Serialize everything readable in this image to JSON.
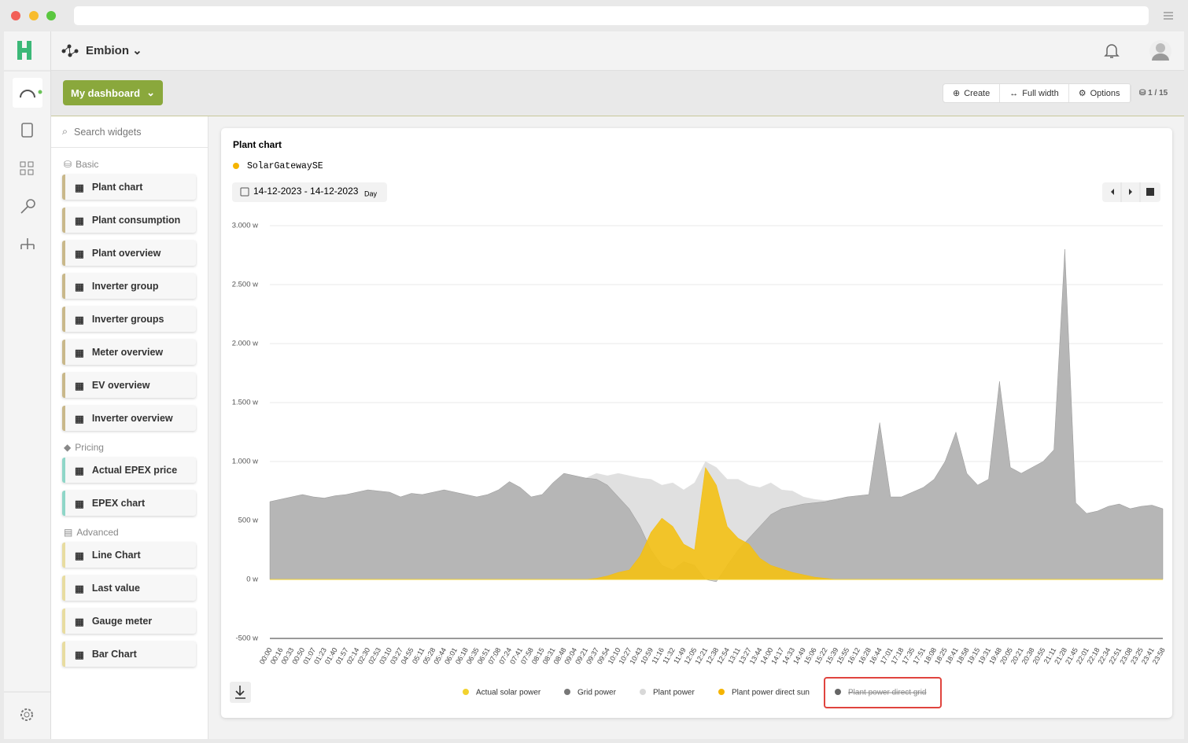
{
  "header": {
    "workspace": "Embion"
  },
  "toolbar": {
    "dashboard": "My dashboard",
    "buttons": [
      "Create",
      "Full width",
      "Options"
    ],
    "page_count": "1 / 15"
  },
  "sidebar": {
    "search_placeholder": "Search widgets",
    "groups": [
      {
        "name": "Basic",
        "items": [
          "Plant chart",
          "Plant consumption",
          "Plant overview",
          "Inverter group",
          "Inverter groups",
          "Meter overview",
          "EV overview",
          "Inverter overview"
        ]
      },
      {
        "name": "Pricing",
        "items": [
          "Actual EPEX price",
          "EPEX chart"
        ]
      },
      {
        "name": "Advanced",
        "items": [
          "Line Chart",
          "Last value",
          "Gauge meter",
          "Bar Chart"
        ]
      }
    ]
  },
  "chart_data": {
    "type": "area",
    "title": "Plant chart",
    "source": "SolarGatewaySE",
    "date_range": "14-12-2023 - 14-12-2023",
    "period": "Day",
    "ylim": [
      -500,
      3000
    ],
    "yticks": [
      {
        "value": -500,
        "label": "-500 w"
      },
      {
        "value": 0,
        "label": "0 w"
      },
      {
        "value": 500,
        "label": "500 w"
      },
      {
        "value": 1000,
        "label": "1.000 w"
      },
      {
        "value": 1500,
        "label": "1.500 w"
      },
      {
        "value": 2000,
        "label": "2.000 w"
      },
      {
        "value": 2500,
        "label": "2.500 w"
      },
      {
        "value": 3000,
        "label": "3.000 w"
      }
    ],
    "categories": [
      "00:00",
      "00:16",
      "00:33",
      "00:50",
      "01:07",
      "01:23",
      "01:40",
      "01:57",
      "02:14",
      "02:30",
      "02:53",
      "03:10",
      "03:27",
      "04:55",
      "05:11",
      "05:28",
      "05:44",
      "06:01",
      "06:18",
      "06:35",
      "06:51",
      "07:08",
      "07:24",
      "07:41",
      "07:58",
      "08:15",
      "08:31",
      "08:48",
      "09:04",
      "09:21",
      "09:37",
      "09:54",
      "10:10",
      "10:27",
      "10:43",
      "10:59",
      "11:16",
      "11:32",
      "11:49",
      "12:05",
      "12:21",
      "12:38",
      "12:54",
      "13:11",
      "13:27",
      "13:44",
      "14:00",
      "14:17",
      "14:33",
      "14:49",
      "15:06",
      "15:22",
      "15:39",
      "15:55",
      "16:12",
      "16:28",
      "16:44",
      "17:01",
      "17:18",
      "17:35",
      "17:51",
      "18:08",
      "18:25",
      "18:41",
      "18:58",
      "19:15",
      "19:31",
      "19:48",
      "20:05",
      "20:21",
      "20:38",
      "20:55",
      "21:11",
      "21:28",
      "21:45",
      "22:01",
      "22:18",
      "22:34",
      "22:51",
      "23:08",
      "23:25",
      "23:41",
      "23:58"
    ],
    "series": [
      {
        "name": "Plant power",
        "color": "#e0e0e0",
        "values": [
          660,
          680,
          700,
          720,
          700,
          690,
          710,
          720,
          740,
          760,
          750,
          740,
          700,
          730,
          720,
          740,
          760,
          740,
          720,
          700,
          720,
          760,
          830,
          780,
          700,
          720,
          820,
          900,
          880,
          860,
          900,
          880,
          900,
          880,
          860,
          850,
          800,
          820,
          760,
          820,
          1000,
          950,
          850,
          850,
          800,
          780,
          820,
          760,
          750,
          700,
          680,
          670,
          680,
          700,
          710,
          720,
          1330,
          700,
          700,
          740,
          780,
          850,
          1000,
          1250,
          900,
          800,
          850,
          1680,
          950,
          900,
          950,
          1000,
          1100,
          2800,
          650,
          560,
          580,
          620,
          640,
          600,
          620,
          630,
          600
        ]
      },
      {
        "name": "Grid power",
        "color": "#777777",
        "values": [
          660,
          680,
          700,
          720,
          700,
          690,
          710,
          720,
          740,
          760,
          750,
          740,
          700,
          730,
          720,
          740,
          760,
          740,
          720,
          700,
          720,
          760,
          830,
          780,
          700,
          720,
          820,
          900,
          880,
          860,
          850,
          800,
          700,
          600,
          450,
          250,
          120,
          80,
          150,
          120,
          0,
          -20,
          120,
          250,
          350,
          450,
          550,
          600,
          620,
          640,
          650,
          660,
          680,
          700,
          710,
          720,
          1330,
          700,
          700,
          740,
          780,
          850,
          1000,
          1250,
          900,
          800,
          850,
          1680,
          950,
          900,
          950,
          1000,
          1100,
          2800,
          650,
          560,
          580,
          620,
          640,
          600,
          620,
          630,
          600
        ]
      },
      {
        "name": "Actual solar power",
        "color": "#f2d22e",
        "values": [
          0,
          0,
          0,
          0,
          0,
          0,
          0,
          0,
          0,
          0,
          0,
          0,
          0,
          0,
          0,
          0,
          0,
          0,
          0,
          0,
          0,
          0,
          0,
          0,
          0,
          0,
          0,
          0,
          0,
          0,
          10,
          30,
          60,
          80,
          200,
          400,
          520,
          450,
          300,
          250,
          950,
          800,
          450,
          350,
          300,
          180,
          120,
          90,
          60,
          40,
          20,
          10,
          0,
          0,
          0,
          0,
          0,
          0,
          0,
          0,
          0,
          0,
          0,
          0,
          0,
          0,
          0,
          0,
          0,
          0,
          0,
          0,
          0,
          0,
          0,
          0,
          0,
          0,
          0,
          0,
          0,
          0,
          0
        ]
      },
      {
        "name": "Plant power direct sun",
        "color": "#f5b400",
        "values": [
          0,
          0,
          0,
          0,
          0,
          0,
          0,
          0,
          0,
          0,
          0,
          0,
          0,
          0,
          0,
          0,
          0,
          0,
          0,
          0,
          0,
          0,
          0,
          0,
          0,
          0,
          0,
          0,
          0,
          0,
          10,
          30,
          60,
          80,
          200,
          400,
          520,
          450,
          300,
          250,
          950,
          800,
          450,
          350,
          300,
          180,
          120,
          90,
          60,
          40,
          20,
          10,
          0,
          0,
          0,
          0,
          0,
          0,
          0,
          0,
          0,
          0,
          0,
          0,
          0,
          0,
          0,
          0,
          0,
          0,
          0,
          0,
          0,
          0,
          0,
          0,
          0,
          0,
          0,
          0,
          0,
          0,
          0
        ]
      },
      {
        "name": "Plant power direct grid",
        "color": "#666666",
        "hidden": true
      }
    ]
  }
}
